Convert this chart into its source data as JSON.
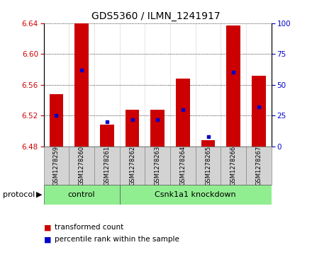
{
  "title": "GDS5360 / ILMN_1241917",
  "samples": [
    "GSM1278259",
    "GSM1278260",
    "GSM1278261",
    "GSM1278262",
    "GSM1278263",
    "GSM1278264",
    "GSM1278265",
    "GSM1278266",
    "GSM1278267"
  ],
  "transformed_counts": [
    6.548,
    6.641,
    6.508,
    6.528,
    6.528,
    6.568,
    6.488,
    6.637,
    6.572
  ],
  "percentile_ranks": [
    25,
    62,
    20,
    22,
    22,
    30,
    8,
    60,
    32
  ],
  "ylim_left": [
    6.48,
    6.64
  ],
  "ylim_right": [
    0,
    100
  ],
  "yticks_left": [
    6.48,
    6.52,
    6.56,
    6.6,
    6.64
  ],
  "yticks_right": [
    0,
    25,
    50,
    75,
    100
  ],
  "bar_color": "#cc0000",
  "percentile_color": "#0000cc",
  "bar_width": 0.55,
  "base_value": 6.48,
  "control_label": "control",
  "knockdown_label": "Csnk1a1 knockdown",
  "protocol_label": "protocol",
  "legend_transformed": "transformed count",
  "legend_percentile": "percentile rank within the sample",
  "green_color": "#90ee90",
  "panel_bg": "#d3d3d3",
  "left_tick_color": "#cc0000",
  "right_tick_color": "#0000cc",
  "n_control": 3,
  "n_knockdown": 6
}
